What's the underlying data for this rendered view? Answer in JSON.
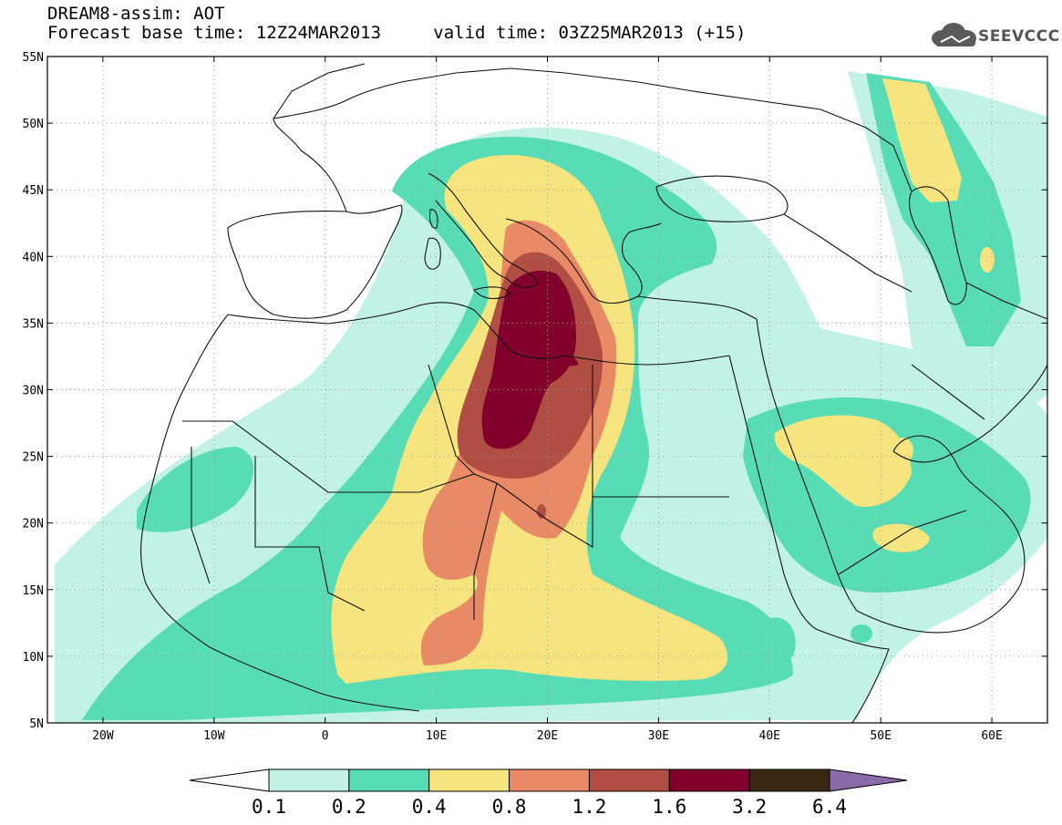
{
  "header": {
    "title": "DREAM8-assim: AOT",
    "forecast": "Forecast base time: 12Z24MAR2013",
    "valid": "valid time: 03Z25MAR2013 (+15)"
  },
  "logo": {
    "text": "SEEVCCC",
    "icon": "cloud-icon",
    "color": "#555555"
  },
  "axes": {
    "lon_range": [
      -25,
      65
    ],
    "lat_range": [
      5,
      55
    ],
    "lon_ticks": [
      {
        "v": -20,
        "label": "20W"
      },
      {
        "v": -10,
        "label": "10W"
      },
      {
        "v": 0,
        "label": "0"
      },
      {
        "v": 10,
        "label": "10E"
      },
      {
        "v": 20,
        "label": "20E"
      },
      {
        "v": 30,
        "label": "30E"
      },
      {
        "v": 40,
        "label": "40E"
      },
      {
        "v": 50,
        "label": "50E"
      },
      {
        "v": 60,
        "label": "60E"
      }
    ],
    "lat_ticks": [
      {
        "v": 55,
        "label": "55N"
      },
      {
        "v": 50,
        "label": "50N"
      },
      {
        "v": 45,
        "label": "45N"
      },
      {
        "v": 40,
        "label": "40N"
      },
      {
        "v": 35,
        "label": "35N"
      },
      {
        "v": 30,
        "label": "30N"
      },
      {
        "v": 25,
        "label": "25N"
      },
      {
        "v": 20,
        "label": "20N"
      },
      {
        "v": 15,
        "label": "15N"
      },
      {
        "v": 10,
        "label": "10N"
      },
      {
        "v": 5,
        "label": "5N"
      }
    ]
  },
  "colorbar": {
    "labels": [
      "0.1",
      "0.2",
      "0.4",
      "0.8",
      "1.2",
      "1.6",
      "3.2",
      "6.4"
    ],
    "colors": [
      "#c2f2e6",
      "#58dcb6",
      "#f6e57e",
      "#e98a66",
      "#b14e44",
      "#81002c",
      "#3a2713",
      "#8a6aa8"
    ]
  }
}
